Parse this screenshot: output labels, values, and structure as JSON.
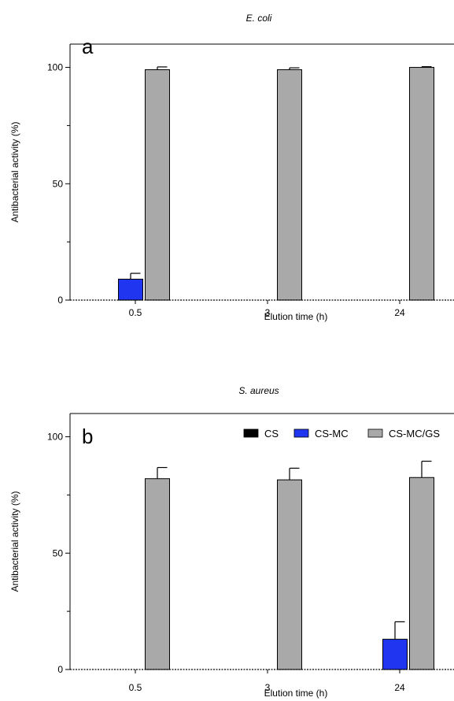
{
  "colors": {
    "CS": "#000000",
    "CS-MC": "#1f35f0",
    "CS-MC/GS": "#a9a9a9",
    "axis": "#000000"
  },
  "legend": {
    "items": [
      {
        "label": "CS",
        "key": "CS"
      },
      {
        "label": "CS-MC",
        "key": "CS-MC"
      },
      {
        "label": "CS-MC/GS",
        "key": "CS-MC/GS"
      }
    ]
  },
  "chart_data": [
    {
      "type": "bar",
      "title": "E. coli",
      "panel_label": "a",
      "xlabel": "Elution time (h)",
      "ylabel": "Antibacterial activity (%)",
      "ylim": [
        0,
        110
      ],
      "yticks": [
        0,
        50,
        100
      ],
      "categories": [
        "0.5",
        "3",
        "24"
      ],
      "legend": false,
      "series": [
        {
          "name": "CS",
          "values": [
            0,
            0,
            0
          ],
          "errors": [
            0,
            0,
            0
          ]
        },
        {
          "name": "CS-MC",
          "values": [
            9,
            0,
            0
          ],
          "errors": [
            2.5,
            0,
            0
          ]
        },
        {
          "name": "CS-MC/GS",
          "values": [
            99,
            99,
            100
          ],
          "errors": [
            1.2,
            0.8,
            0.3
          ]
        }
      ]
    },
    {
      "type": "bar",
      "title": "S. aureus",
      "panel_label": "b",
      "xlabel": "Elution time (h)",
      "ylabel": "Antibacterial activity (%)",
      "ylim": [
        0,
        110
      ],
      "yticks": [
        0,
        50,
        100
      ],
      "categories": [
        "0.5",
        "3",
        "24"
      ],
      "legend": true,
      "legend_position": "top-right",
      "series": [
        {
          "name": "CS",
          "values": [
            0,
            0,
            0
          ],
          "errors": [
            0,
            0,
            0
          ]
        },
        {
          "name": "CS-MC",
          "values": [
            0,
            0,
            13
          ],
          "errors": [
            0,
            0,
            7.5
          ]
        },
        {
          "name": "CS-MC/GS",
          "values": [
            82,
            81.5,
            82.5
          ],
          "errors": [
            4.8,
            5,
            7
          ]
        }
      ]
    }
  ]
}
